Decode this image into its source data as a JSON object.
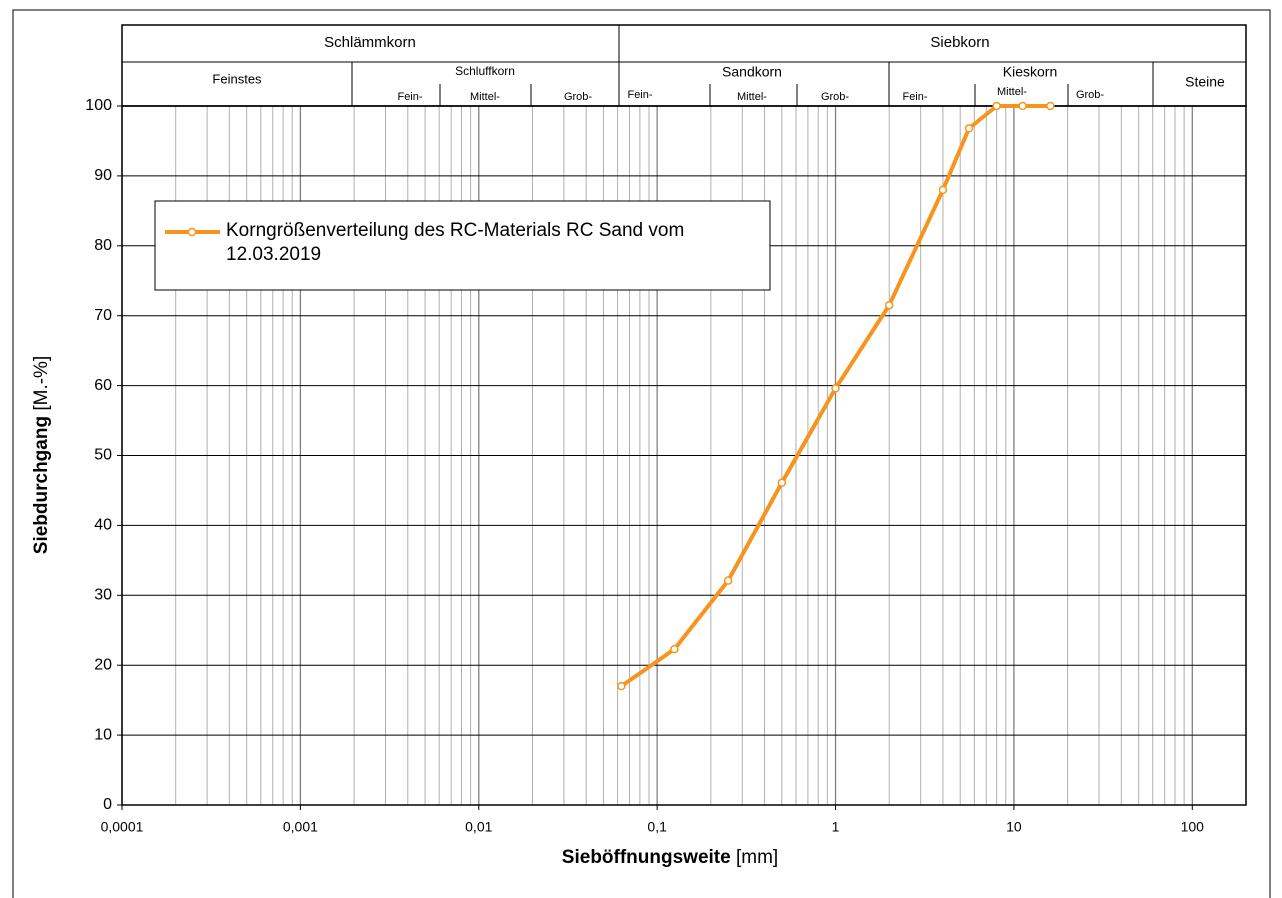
{
  "chart_data": {
    "type": "line",
    "x_label": "Sieböffnungsweite",
    "x_unit": "[mm]",
    "y_label": "Siebdurchgang",
    "y_unit": "[M.-%]",
    "zones": [
      {
        "label": "Schlämmkorn",
        "groups": [
          {
            "label": "Feinstes"
          },
          {
            "label": "Schluffkorn",
            "parts": [
              "Fein-",
              "Mittel-",
              "Grob-"
            ]
          }
        ]
      },
      {
        "label": "Siebkorn",
        "groups": [
          {
            "label": "Sandkorn",
            "parts": [
              "Fein-",
              "Mittel-",
              "Grob-"
            ]
          },
          {
            "label": "Kieskorn",
            "parts": [
              "Fein-",
              "Mittel-",
              "Grob-"
            ]
          },
          {
            "label": "Steine"
          }
        ]
      }
    ],
    "x_scale": "log",
    "xlim": [
      0.0001,
      200
    ],
    "xticks": [
      {
        "value": 0.0001,
        "label": "0,0001"
      },
      {
        "value": 0.001,
        "label": "0,001"
      },
      {
        "value": 0.01,
        "label": "0,01"
      },
      {
        "value": 0.1,
        "label": "0,1"
      },
      1,
      10,
      100
    ],
    "ylim": [
      0,
      100
    ],
    "yticks": [
      0,
      10,
      20,
      30,
      40,
      50,
      60,
      70,
      80,
      90,
      100
    ],
    "grid": true,
    "legend": "upper left",
    "series": [
      {
        "name": "Korngrößenverteilung des RC-Materials RC Sand vom 12.03.2019",
        "color": "#f7941d",
        "x": [
          0.063,
          0.125,
          0.25,
          0.5,
          1,
          2,
          4,
          5.6,
          8,
          11.2,
          16
        ],
        "values": [
          17,
          22.3,
          32.1,
          46.1,
          59.6,
          71.5,
          88,
          96.8,
          100,
          100,
          100
        ]
      }
    ]
  }
}
